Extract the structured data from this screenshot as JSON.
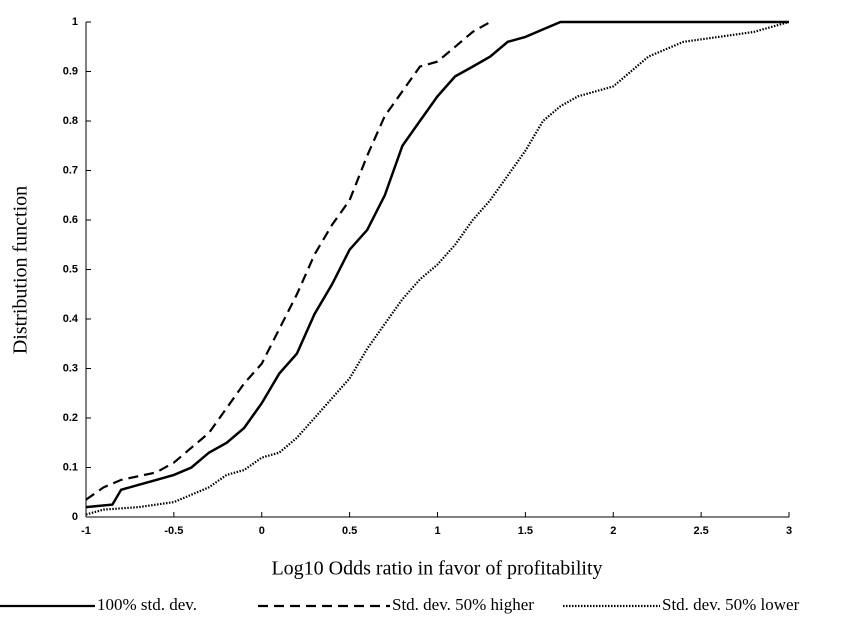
{
  "chart_data": {
    "type": "line",
    "xlabel": "Log10 Odds ratio in favor of profitability",
    "ylabel": "Distribution function",
    "xlim": [
      -1,
      3
    ],
    "ylim": [
      0,
      1
    ],
    "xticks": [
      -1,
      -0.5,
      0,
      0.5,
      1,
      1.5,
      2,
      2.5,
      3
    ],
    "yticks": [
      0,
      0.1,
      0.2,
      0.3,
      0.4,
      0.5,
      0.6,
      0.7,
      0.8,
      0.9,
      1
    ],
    "grid": false,
    "legend": "bottom",
    "series": [
      {
        "name": "100% std. dev.",
        "color": "#000000",
        "dash": "solid",
        "x": [
          -1,
          -0.85,
          -0.8,
          -0.7,
          -0.6,
          -0.5,
          -0.4,
          -0.3,
          -0.2,
          -0.1,
          0,
          0.1,
          0.2,
          0.3,
          0.4,
          0.5,
          0.6,
          0.7,
          0.8,
          0.9,
          1.0,
          1.1,
          1.2,
          1.3,
          1.4,
          1.5,
          1.6,
          1.7,
          3
        ],
        "values": [
          0.02,
          0.025,
          0.055,
          0.065,
          0.075,
          0.085,
          0.1,
          0.13,
          0.15,
          0.18,
          0.23,
          0.29,
          0.33,
          0.41,
          0.47,
          0.54,
          0.58,
          0.65,
          0.75,
          0.8,
          0.85,
          0.89,
          0.91,
          0.93,
          0.96,
          0.97,
          0.985,
          1.0,
          1.0
        ]
      },
      {
        "name": "Std. dev. 50% higher",
        "color": "#000000",
        "dash": "dashed",
        "x": [
          -1,
          -0.9,
          -0.8,
          -0.6,
          -0.5,
          -0.4,
          -0.3,
          -0.2,
          -0.1,
          0,
          0.1,
          0.2,
          0.3,
          0.4,
          0.5,
          0.6,
          0.7,
          0.8,
          0.9,
          1.0,
          1.1,
          1.2,
          1.3
        ],
        "values": [
          0.035,
          0.06,
          0.075,
          0.09,
          0.11,
          0.14,
          0.17,
          0.22,
          0.27,
          0.31,
          0.38,
          0.45,
          0.53,
          0.59,
          0.64,
          0.73,
          0.81,
          0.86,
          0.91,
          0.92,
          0.95,
          0.98,
          1.0
        ]
      },
      {
        "name": "Std. dev. 50% lower",
        "color": "#000000",
        "dash": "dotted",
        "x": [
          -1,
          -0.9,
          -0.7,
          -0.5,
          -0.4,
          -0.3,
          -0.2,
          -0.1,
          0,
          0.1,
          0.2,
          0.3,
          0.4,
          0.5,
          0.6,
          0.7,
          0.8,
          0.9,
          1.0,
          1.1,
          1.2,
          1.3,
          1.4,
          1.5,
          1.6,
          1.7,
          1.8,
          2.0,
          2.1,
          2.2,
          2.4,
          2.6,
          2.8,
          2.9,
          3.0
        ],
        "values": [
          0.005,
          0.015,
          0.02,
          0.03,
          0.045,
          0.06,
          0.085,
          0.095,
          0.12,
          0.13,
          0.16,
          0.2,
          0.24,
          0.28,
          0.34,
          0.39,
          0.44,
          0.48,
          0.51,
          0.55,
          0.6,
          0.64,
          0.69,
          0.74,
          0.8,
          0.83,
          0.85,
          0.87,
          0.9,
          0.93,
          0.96,
          0.97,
          0.98,
          0.99,
          1.0
        ]
      }
    ]
  }
}
